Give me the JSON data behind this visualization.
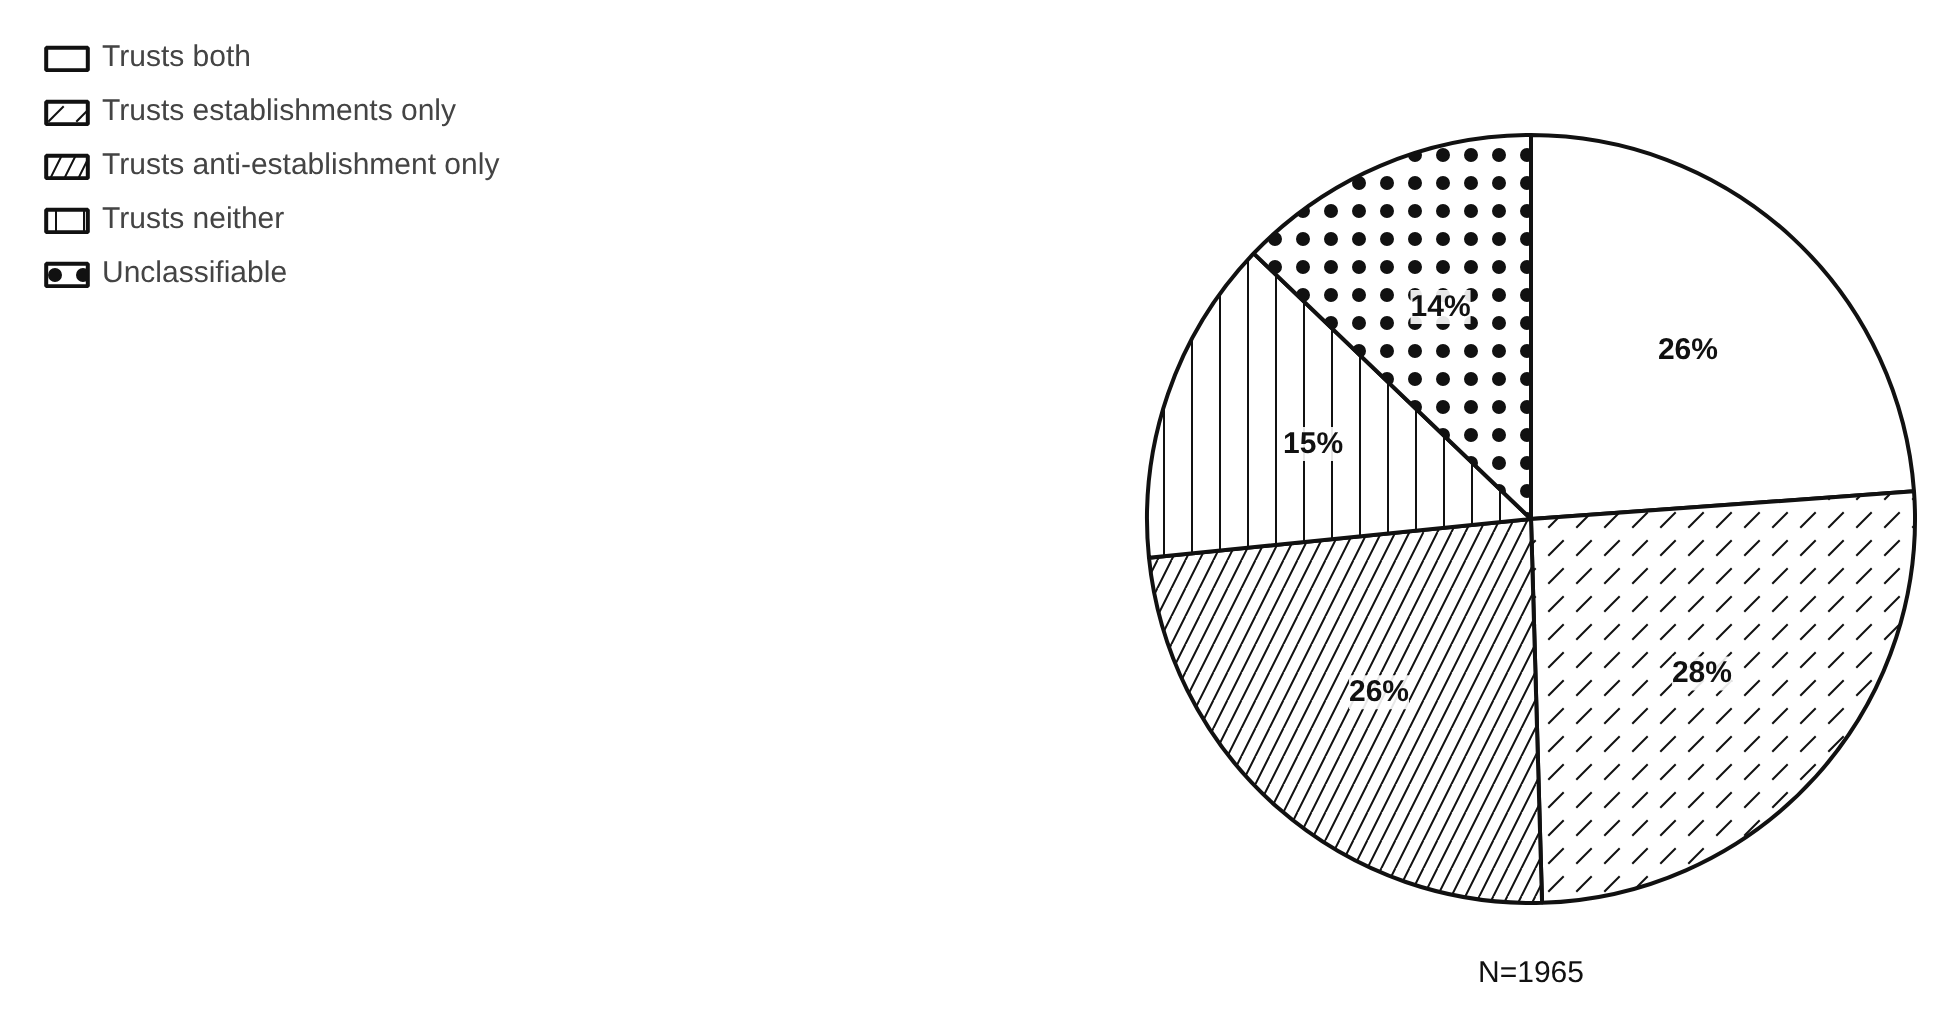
{
  "chart_data": {
    "type": "pie",
    "categories": [
      "Trusts both",
      "Trusts establishments only",
      "Trusts anti-establishment only",
      "Trusts neither",
      "Unclassifiable"
    ],
    "values": [
      26,
      28,
      26,
      15,
      14
    ],
    "value_labels": [
      "26%",
      "28%",
      "26%",
      "15%",
      "14%"
    ],
    "colors": [
      "#ffffff",
      "#ffffff",
      "#ffffff",
      "#ffffff",
      "#ffffff"
    ],
    "legend": "top left",
    "annotations": [
      "N=1965"
    ]
  }
}
